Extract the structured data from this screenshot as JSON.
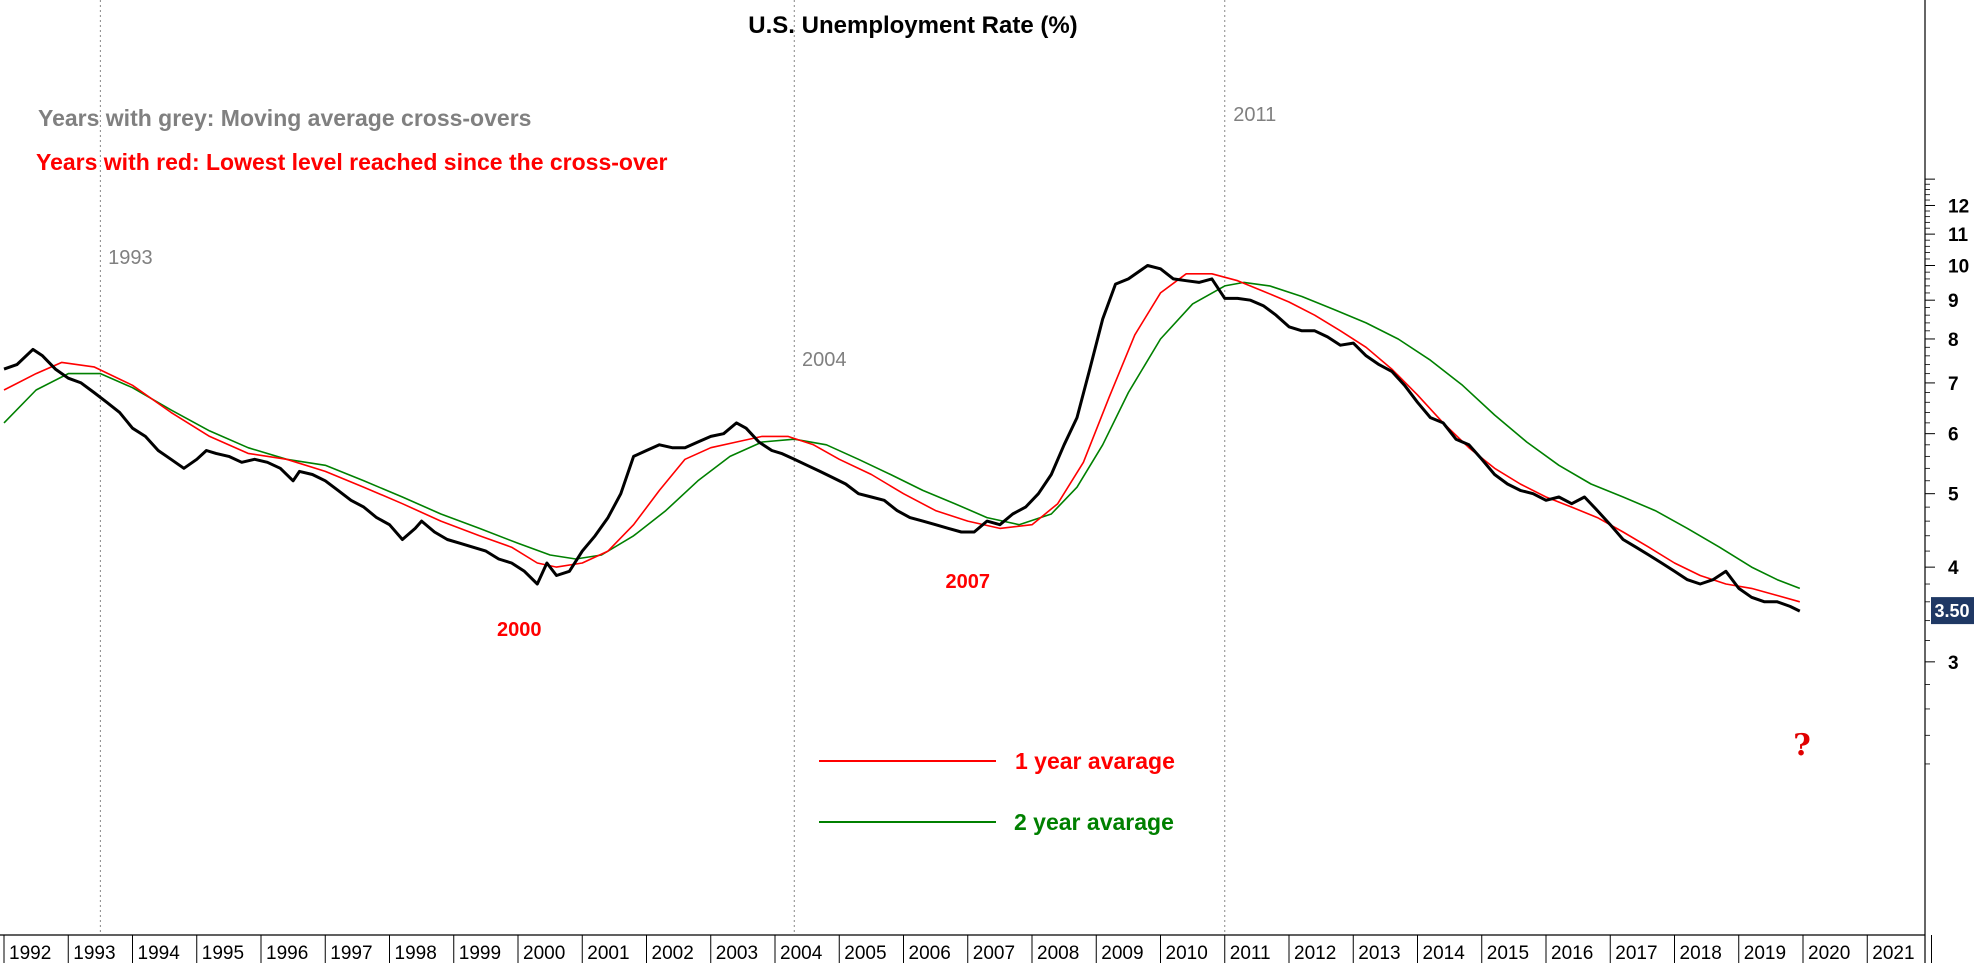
{
  "chart_data": {
    "type": "line",
    "title": "U.S. Unemployment Rate (%)",
    "notes": {
      "grey": "Years with grey: Moving average cross-overs",
      "red": "Years with red: Lowest level reached since the cross-over"
    },
    "y_scale": "log",
    "ylim": [
      2.1,
      13.0
    ],
    "xlim": [
      1992.0,
      2022.0
    ],
    "grid": false,
    "legend_position": "bottom-center",
    "x_ticks": [
      "1992",
      "1993",
      "1994",
      "1995",
      "1996",
      "1997",
      "1998",
      "1999",
      "2000",
      "2001",
      "2002",
      "2003",
      "2004",
      "2005",
      "2006",
      "2007",
      "2008",
      "2009",
      "2010",
      "2011",
      "2012",
      "2013",
      "2014",
      "2015",
      "2016",
      "2017",
      "2018",
      "2019",
      "2020",
      "2021"
    ],
    "y_ticks": [
      3,
      4,
      5,
      6,
      7,
      8,
      9,
      10,
      11,
      12
    ],
    "crossover_years": [
      {
        "label": "1993",
        "x": 1993.5
      },
      {
        "label": "2004",
        "x": 2004.3
      },
      {
        "label": "2011",
        "x": 2011.0
      }
    ],
    "low_annotations": [
      {
        "label": "2000",
        "x": 2000.3,
        "y": 3.8
      },
      {
        "label": "2007",
        "x": 2007.0,
        "y": 4.4
      }
    ],
    "last_value": "3.50",
    "question_mark": "?",
    "series": [
      {
        "name": "",
        "color": "#000000",
        "x": [
          1992.0,
          1992.2,
          1992.45,
          1992.6,
          1992.8,
          1993.0,
          1993.2,
          1993.4,
          1993.6,
          1993.8,
          1994.0,
          1994.2,
          1994.4,
          1994.6,
          1994.8,
          1995.0,
          1995.15,
          1995.3,
          1995.5,
          1995.7,
          1995.9,
          1996.1,
          1996.3,
          1996.5,
          1996.6,
          1996.8,
          1997.0,
          1997.2,
          1997.4,
          1997.6,
          1997.8,
          1998.0,
          1998.2,
          1998.4,
          1998.5,
          1998.7,
          1998.9,
          1999.1,
          1999.3,
          1999.5,
          1999.7,
          1999.9,
          2000.1,
          2000.3,
          2000.45,
          2000.6,
          2000.8,
          2001.0,
          2001.2,
          2001.4,
          2001.6,
          2001.8,
          2002.0,
          2002.2,
          2002.4,
          2002.6,
          2002.8,
          2003.0,
          2003.2,
          2003.4,
          2003.55,
          2003.75,
          2003.95,
          2004.1,
          2004.3,
          2004.5,
          2004.7,
          2004.9,
          2005.1,
          2005.3,
          2005.5,
          2005.7,
          2005.9,
          2006.1,
          2006.3,
          2006.5,
          2006.7,
          2006.9,
          2007.1,
          2007.3,
          2007.5,
          2007.7,
          2007.9,
          2008.1,
          2008.3,
          2008.5,
          2008.7,
          2008.9,
          2009.1,
          2009.3,
          2009.5,
          2009.8,
          2010.0,
          2010.2,
          2010.4,
          2010.6,
          2010.8,
          2011.0,
          2011.2,
          2011.4,
          2011.6,
          2011.8,
          2012.0,
          2012.2,
          2012.4,
          2012.6,
          2012.8,
          2013.0,
          2013.2,
          2013.4,
          2013.6,
          2013.8,
          2014.0,
          2014.2,
          2014.4,
          2014.6,
          2014.8,
          2015.0,
          2015.2,
          2015.4,
          2015.6,
          2015.8,
          2016.0,
          2016.2,
          2016.4,
          2016.6,
          2016.8,
          2017.0,
          2017.2,
          2017.4,
          2017.6,
          2017.8,
          2018.0,
          2018.2,
          2018.4,
          2018.6,
          2018.8,
          2019.0,
          2019.2,
          2019.4,
          2019.6,
          2019.8,
          2019.95
        ],
        "values": [
          7.3,
          7.4,
          7.75,
          7.6,
          7.3,
          7.1,
          7.0,
          6.8,
          6.6,
          6.4,
          6.1,
          5.95,
          5.7,
          5.55,
          5.4,
          5.55,
          5.7,
          5.65,
          5.6,
          5.5,
          5.55,
          5.5,
          5.4,
          5.2,
          5.35,
          5.3,
          5.2,
          5.05,
          4.9,
          4.8,
          4.65,
          4.55,
          4.35,
          4.5,
          4.6,
          4.45,
          4.35,
          4.3,
          4.25,
          4.2,
          4.1,
          4.05,
          3.95,
          3.8,
          4.05,
          3.9,
          3.95,
          4.2,
          4.4,
          4.65,
          5.0,
          5.6,
          5.7,
          5.8,
          5.75,
          5.75,
          5.85,
          5.95,
          6.0,
          6.2,
          6.1,
          5.85,
          5.7,
          5.65,
          5.55,
          5.45,
          5.35,
          5.25,
          5.15,
          5.0,
          4.95,
          4.9,
          4.75,
          4.65,
          4.6,
          4.55,
          4.5,
          4.45,
          4.45,
          4.6,
          4.55,
          4.7,
          4.8,
          5.0,
          5.3,
          5.8,
          6.3,
          7.3,
          8.5,
          9.45,
          9.6,
          10.0,
          9.9,
          9.6,
          9.55,
          9.5,
          9.6,
          9.05,
          9.05,
          9.0,
          8.85,
          8.6,
          8.3,
          8.2,
          8.2,
          8.05,
          7.85,
          7.9,
          7.6,
          7.4,
          7.25,
          6.95,
          6.6,
          6.3,
          6.2,
          5.9,
          5.8,
          5.55,
          5.3,
          5.15,
          5.05,
          5.0,
          4.9,
          4.95,
          4.85,
          4.95,
          4.75,
          4.55,
          4.35,
          4.25,
          4.15,
          4.05,
          3.95,
          3.85,
          3.8,
          3.85,
          3.95,
          3.75,
          3.65,
          3.6,
          3.6,
          3.55,
          3.5
        ]
      },
      {
        "name": "1 year avarage",
        "color": "#ff0000",
        "x": [
          1992.0,
          1992.5,
          1992.9,
          1993.4,
          1994.0,
          1994.6,
          1995.2,
          1995.8,
          1996.4,
          1997.0,
          1997.6,
          1998.2,
          1998.8,
          1999.4,
          1999.9,
          2000.3,
          2000.6,
          2001.0,
          2001.4,
          2001.8,
          2002.2,
          2002.6,
          2003.0,
          2003.4,
          2003.8,
          2004.2,
          2004.6,
          2005.0,
          2005.5,
          2006.0,
          2006.5,
          2007.0,
          2007.5,
          2008.0,
          2008.4,
          2008.8,
          2009.2,
          2009.6,
          2010.0,
          2010.4,
          2010.8,
          2011.2,
          2011.6,
          2012.0,
          2012.4,
          2012.8,
          2013.2,
          2013.6,
          2014.0,
          2014.4,
          2014.8,
          2015.2,
          2015.6,
          2016.0,
          2016.4,
          2016.8,
          2017.2,
          2017.6,
          2018.0,
          2018.4,
          2018.8,
          2019.2,
          2019.6,
          2019.95
        ],
        "values": [
          6.85,
          7.2,
          7.45,
          7.35,
          6.95,
          6.4,
          5.95,
          5.65,
          5.55,
          5.35,
          5.1,
          4.85,
          4.6,
          4.4,
          4.25,
          4.05,
          4.0,
          4.05,
          4.2,
          4.55,
          5.05,
          5.55,
          5.75,
          5.85,
          5.95,
          5.95,
          5.8,
          5.55,
          5.3,
          5.0,
          4.75,
          4.6,
          4.5,
          4.55,
          4.85,
          5.5,
          6.7,
          8.1,
          9.2,
          9.75,
          9.75,
          9.55,
          9.25,
          8.95,
          8.6,
          8.2,
          7.8,
          7.3,
          6.75,
          6.2,
          5.75,
          5.4,
          5.15,
          4.95,
          4.8,
          4.65,
          4.45,
          4.25,
          4.05,
          3.9,
          3.8,
          3.75,
          3.67,
          3.6
        ]
      },
      {
        "name": "2 year avarage",
        "color": "#008000",
        "x": [
          1992.0,
          1992.5,
          1993.0,
          1993.5,
          1994.0,
          1994.6,
          1995.2,
          1995.8,
          1996.4,
          1997.0,
          1997.6,
          1998.2,
          1998.8,
          1999.4,
          2000.0,
          2000.5,
          2000.9,
          2001.3,
          2001.8,
          2002.3,
          2002.8,
          2003.3,
          2003.8,
          2004.3,
          2004.8,
          2005.3,
          2005.8,
          2006.3,
          2006.8,
          2007.3,
          2007.8,
          2008.3,
          2008.7,
          2009.1,
          2009.5,
          2010.0,
          2010.5,
          2011.0,
          2011.3,
          2011.7,
          2012.2,
          2012.7,
          2013.2,
          2013.7,
          2014.2,
          2014.7,
          2015.2,
          2015.7,
          2016.2,
          2016.7,
          2017.2,
          2017.7,
          2018.2,
          2018.7,
          2019.2,
          2019.6,
          2019.95
        ],
        "values": [
          6.2,
          6.85,
          7.2,
          7.2,
          6.9,
          6.45,
          6.05,
          5.75,
          5.55,
          5.45,
          5.2,
          4.95,
          4.7,
          4.5,
          4.3,
          4.15,
          4.1,
          4.15,
          4.4,
          4.75,
          5.2,
          5.6,
          5.85,
          5.9,
          5.8,
          5.55,
          5.3,
          5.05,
          4.85,
          4.65,
          4.55,
          4.7,
          5.1,
          5.8,
          6.8,
          8.0,
          8.9,
          9.4,
          9.5,
          9.4,
          9.1,
          8.75,
          8.4,
          8.0,
          7.5,
          6.95,
          6.35,
          5.85,
          5.45,
          5.15,
          4.95,
          4.75,
          4.5,
          4.25,
          4.0,
          3.85,
          3.75
        ]
      }
    ]
  }
}
